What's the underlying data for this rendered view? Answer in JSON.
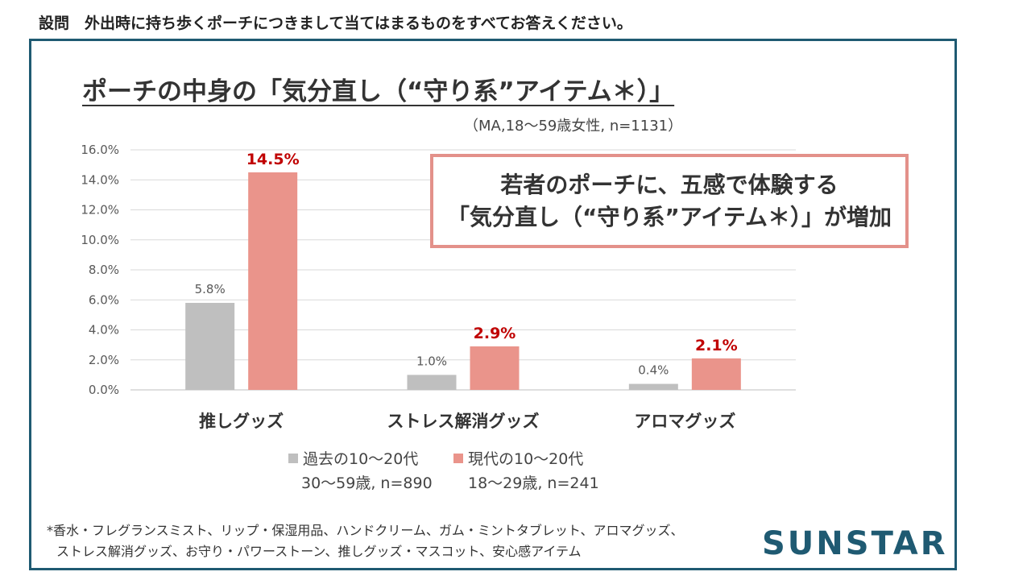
{
  "question": "設問　外出時に持ち歩くポーチにつきまして当てはまるものをすべてお答えください。",
  "colors": {
    "frame": "#1f5a72",
    "past": "#bfbfbf",
    "present": "#ea948b",
    "highlight_label": "#c00000"
  },
  "chart_data": {
    "type": "bar",
    "title": "ポーチの中身の「気分直し（“守り系”アイテム＊）」",
    "subtitle": "（MA,18～59歳女性, n=1131）",
    "categories": [
      "推しグッズ",
      "ストレス解消グッズ",
      "アロマグッズ"
    ],
    "series": [
      {
        "name": "過去の10～20代",
        "sample": "30～59歳, n=890",
        "values": [
          5.8,
          1.0,
          0.4
        ],
        "labels": [
          "5.8%",
          "1.0%",
          "0.4%"
        ]
      },
      {
        "name": "現代の10～20代",
        "sample": "18～29歳, n=241",
        "values": [
          14.5,
          2.9,
          2.1
        ],
        "labels": [
          "14.5%",
          "2.9%",
          "2.1%"
        ]
      }
    ],
    "ylim": [
      0,
      16
    ],
    "yticks": [
      "0.0%",
      "2.0%",
      "4.0%",
      "6.0%",
      "8.0%",
      "10.0%",
      "12.0%",
      "14.0%",
      "16.0%"
    ],
    "grid": true,
    "legend_position": "bottom"
  },
  "callout": {
    "line1": "若者のポーチに、五感で体験する",
    "line2": "「気分直し（“守り系”アイテム＊）」が増加"
  },
  "footnote": {
    "line1": "*香水・フレグランスミスト、リップ・保湿用品、ハンドクリーム、ガム・ミントタブレット、アロマグッズ、",
    "line2": "ストレス解消グッズ、お守り・パワーストーン、推しグッズ・マスコット、安心感アイテム"
  },
  "logo": "SUNSTAR"
}
